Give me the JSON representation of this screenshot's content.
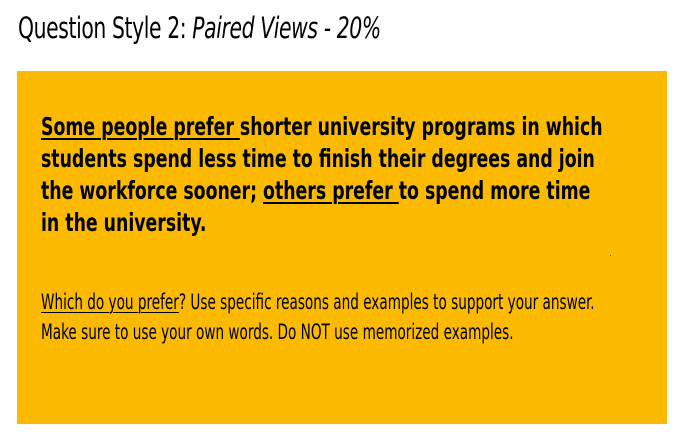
{
  "title": {
    "main": "Question Style 2: ",
    "subtitle": "Paired Views - 20%"
  },
  "prompt": {
    "main": {
      "part1_underlined": "Some people prefer ",
      "part2": "shorter university programs in which students spend less time to finish their degrees and join the workforce sooner; ",
      "part3_underlined": "others prefer ",
      "part4": "to spend more time in the university."
    },
    "instructions": {
      "part1_underlined": "Which do you prefer",
      "part2": "? Use specific reasons and examples to support your answer. Make sure to use your own words. Do NOT use memorized examples."
    }
  },
  "colors": {
    "box_background": "#fbb900",
    "text": "#000000",
    "page_background": "#ffffff"
  }
}
